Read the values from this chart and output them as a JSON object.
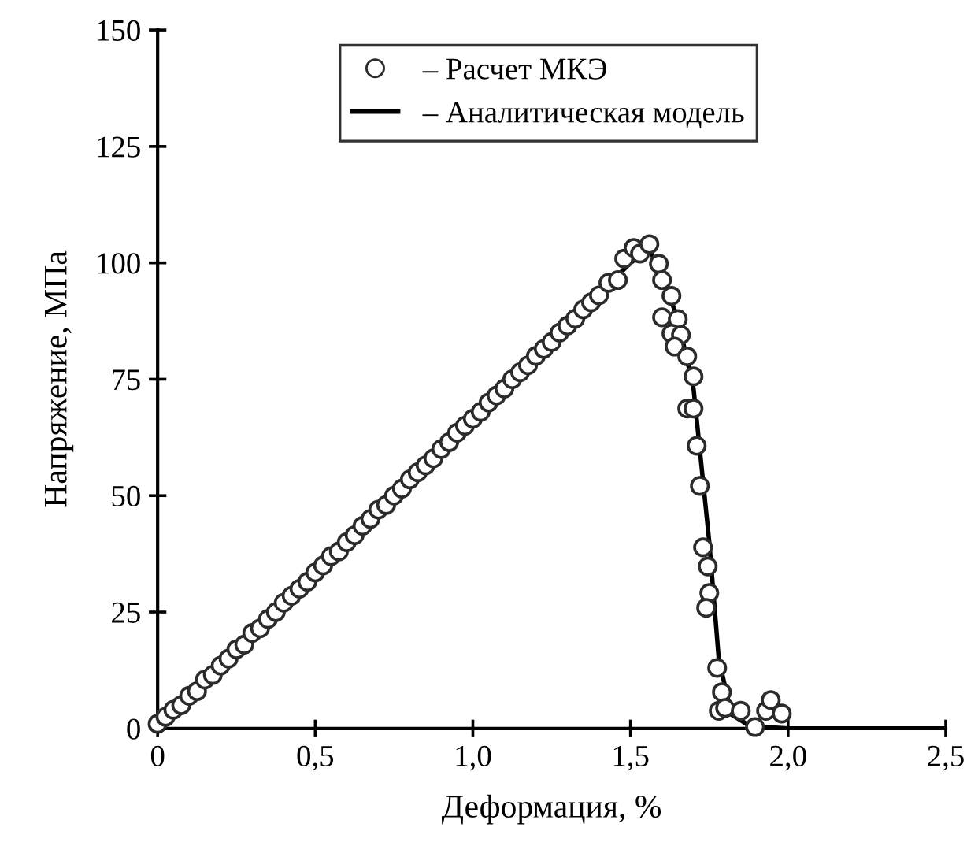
{
  "chart_data": {
    "type": "scatter",
    "xlabel": "Деформация, %",
    "ylabel": "Напряжение, МПа",
    "xlim": [
      0,
      2.5
    ],
    "ylim": [
      0,
      150
    ],
    "xticks": [
      0,
      {
        "value": 0.5,
        "label": "0,5"
      },
      {
        "value": 1.0,
        "label": "1,0"
      },
      {
        "value": 1.5,
        "label": "1,5"
      },
      {
        "value": 2.0,
        "label": "2,0"
      },
      {
        "value": 2.5,
        "label": "2,5"
      }
    ],
    "yticks": [
      0,
      25,
      50,
      75,
      100,
      125,
      150
    ],
    "grid": false,
    "legend": "top right",
    "series": [
      {
        "name": "– Расчет МКЭ",
        "marker": "circle",
        "color": "#2b2b2b",
        "x": [
          0,
          0.025,
          0.05,
          0.075,
          0.1,
          0.125,
          0.15,
          0.175,
          0.2,
          0.225,
          0.25,
          0.275,
          0.3,
          0.325,
          0.35,
          0.375,
          0.4,
          0.425,
          0.45,
          0.475,
          0.5,
          0.525,
          0.55,
          0.575,
          0.6,
          0.625,
          0.65,
          0.675,
          0.7,
          0.725,
          0.75,
          0.775,
          0.8,
          0.825,
          0.85,
          0.875,
          0.9,
          0.925,
          0.95,
          0.975,
          1.0,
          1.025,
          1.05,
          1.075,
          1.1,
          1.125,
          1.15,
          1.175,
          1.2,
          1.225,
          1.25,
          1.275,
          1.3,
          1.325,
          1.35,
          1.375,
          1.4,
          1.43,
          1.46,
          1.48,
          1.51,
          1.53,
          1.56,
          1.59,
          1.6,
          1.63,
          1.6,
          1.65,
          1.63,
          1.66,
          1.64,
          1.68,
          1.7,
          1.68,
          1.7,
          1.71,
          1.72,
          1.73,
          1.745,
          1.75,
          1.74,
          1.775,
          1.79,
          1.78,
          1.8,
          1.85,
          1.895,
          1.93,
          1.945,
          1.98
        ],
        "values": [
          1,
          2.5,
          4,
          5,
          7,
          8,
          10.5,
          11.5,
          13.5,
          15,
          17,
          18,
          20.5,
          21.5,
          23.5,
          25,
          27,
          28.5,
          30,
          31.5,
          33.5,
          35,
          37,
          38,
          40,
          41.5,
          43.5,
          45,
          47,
          48,
          50,
          51.5,
          53.5,
          55,
          56.5,
          58,
          60,
          61.5,
          63.5,
          65,
          66.5,
          68,
          70,
          71.5,
          73,
          75,
          76.5,
          78,
          80,
          81.5,
          83,
          85,
          86.5,
          88,
          90,
          91.5,
          93,
          95.7,
          96.3,
          100.9,
          103.2,
          102,
          104,
          99.8,
          96.3,
          92.9,
          88.3,
          87.9,
          84.8,
          84.5,
          82,
          79.9,
          75.6,
          68.7,
          68.7,
          60.7,
          52.1,
          38.9,
          34.8,
          29.1,
          25.9,
          13,
          7.8,
          3.8,
          4.4,
          3.8,
          0.3,
          3.8,
          6.1,
          3.2
        ]
      },
      {
        "name": "– Аналитическая модель",
        "type": "line",
        "marker": "none",
        "line_style": "solid",
        "color": "#000000",
        "x": [
          0,
          0.5,
          1.0,
          1.5,
          1.56,
          1.6,
          1.65,
          1.7,
          1.75,
          1.78,
          1.82,
          1.88,
          2.0,
          2.5
        ],
        "values": [
          0,
          33.3,
          66.7,
          100,
          103,
          97,
          88,
          73,
          40,
          15,
          3,
          0.5,
          0,
          0
        ]
      }
    ]
  }
}
